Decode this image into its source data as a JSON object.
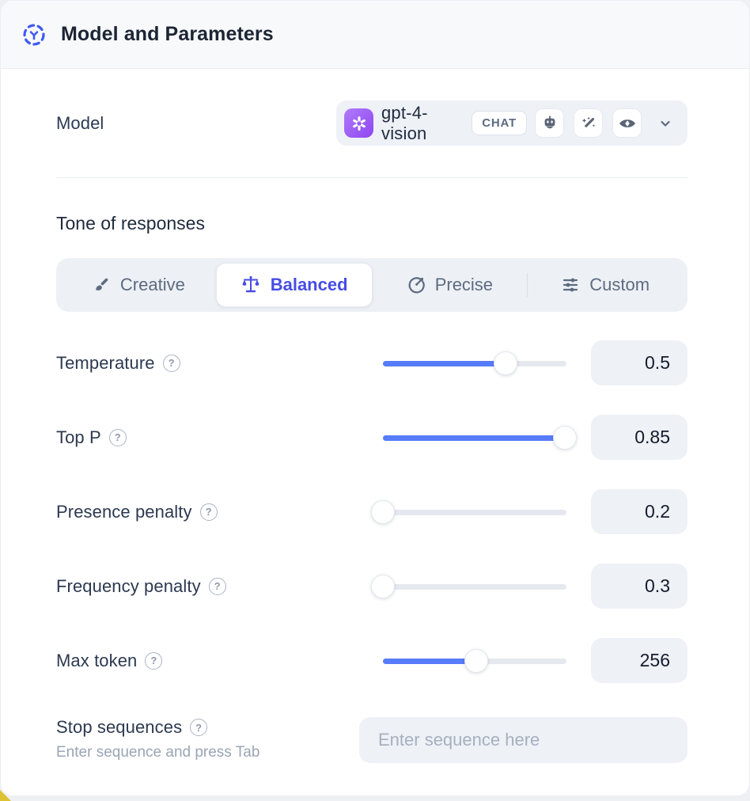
{
  "header": {
    "title": "Model and Parameters",
    "icon": "dashed-selection-icon"
  },
  "model": {
    "label": "Model",
    "selected_name": "gpt-4-vision",
    "type_badge": "CHAT",
    "provider_icon": "openai-logo",
    "capability_icons": [
      "robot-icon",
      "magic-wand-icon",
      "vision-eye-icon"
    ]
  },
  "tone": {
    "section_title": "Tone of responses",
    "options": [
      {
        "label": "Creative",
        "icon": "paintbrush-icon",
        "selected": false
      },
      {
        "label": "Balanced",
        "icon": "balance-scale-icon",
        "selected": true
      },
      {
        "label": "Precise",
        "icon": "target-arrow-icon",
        "selected": false
      },
      {
        "label": "Custom",
        "icon": "sliders-icon",
        "selected": false
      }
    ]
  },
  "parameters": [
    {
      "label": "Temperature",
      "value": "0.5",
      "slider_percent": 67
    },
    {
      "label": "Top P",
      "value": "0.85",
      "slider_percent": 99
    },
    {
      "label": "Presence penalty",
      "value": "0.2",
      "slider_percent": 0
    },
    {
      "label": "Frequency penalty",
      "value": "0.3",
      "slider_percent": 0
    },
    {
      "label": "Max token",
      "value": "256",
      "slider_percent": 51
    }
  ],
  "stop_sequences": {
    "label": "Stop sequences",
    "hint": "Enter sequence and press Tab",
    "placeholder": "Enter sequence here"
  },
  "colors": {
    "accent_blue": "#577cf9",
    "selected_text": "#474de4",
    "surface": "#eef1f6",
    "header_bg": "#f8f9fb",
    "logo_purple": "#9b5cf6",
    "corner_yellow": "#ddc331"
  }
}
